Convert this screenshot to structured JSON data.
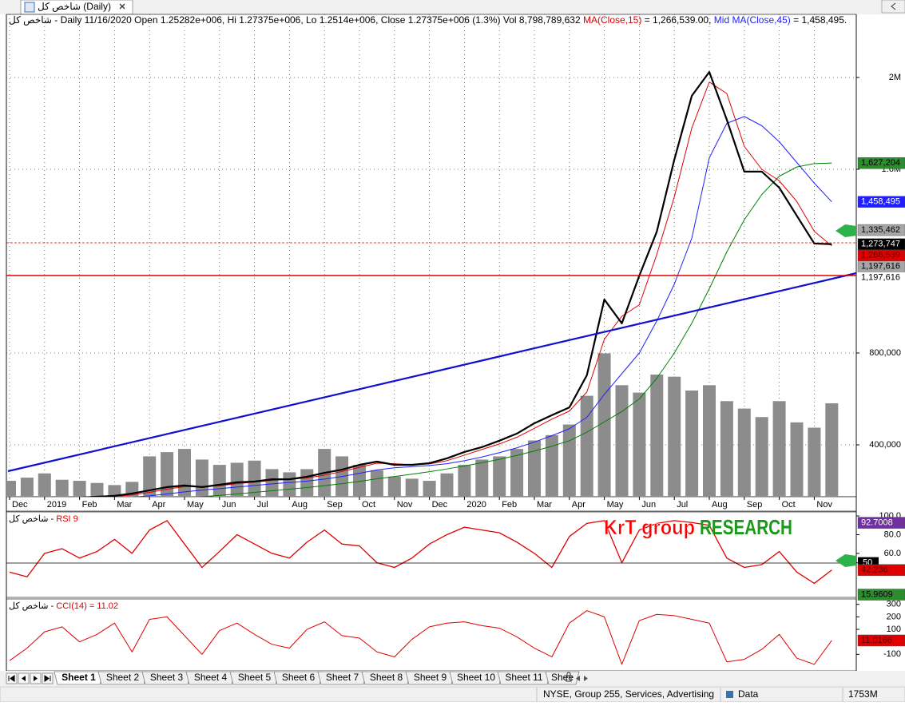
{
  "window": {
    "tab_title": "شاخص کل (Daily)"
  },
  "header": {
    "source": "شاخص کل -",
    "info": "Daily 11/16/2020 Open 1.25282e+006, Hi 1.27375e+006, Lo 1.2514e+006, Close 1.27375e+006 (1.3%) Vol 8,798,789,632",
    "ma15_value": "= 1,266,539.00,",
    "ma45_value": "= 1,458,495."
  },
  "chart_data": [
    {
      "type": "line",
      "categories": [
        "Dec",
        null,
        "2019",
        null,
        "Feb",
        null,
        "Mar",
        null,
        "Apr",
        null,
        "May",
        null,
        "Jun",
        null,
        "Jul",
        null,
        "Aug",
        null,
        "Sep",
        null,
        "Oct",
        null,
        "Nov",
        null,
        "Dec",
        null,
        "2020",
        null,
        "Feb",
        null,
        "Mar",
        null,
        "Apr",
        null,
        "May",
        null,
        "Jun",
        null,
        "Jul",
        null,
        "Aug",
        null,
        "Sep",
        null,
        "Oct",
        null,
        "Nov",
        null
      ],
      "ylim": [
        173900,
        2274800
      ],
      "yticks": [
        {
          "value": 400000,
          "label": "400,000"
        },
        {
          "value": 800000,
          "label": "800,000"
        },
        {
          "value": 1600000,
          "label": "1.6M"
        },
        {
          "value": 2000000,
          "label": "2M"
        }
      ],
      "y2lim": [
        0,
        45400000000
      ],
      "grid": true,
      "series": [
        {
          "type": "bar",
          "axis": "y2",
          "color": "#8c8c8c",
          "values": [
            1500000000,
            1800000000,
            2200000000,
            1600000000,
            1500000000,
            1300000000,
            1100000000,
            1400000000,
            3800000000,
            4200000000,
            4500000000,
            3500000000,
            3000000000,
            3200000000,
            3400000000,
            2600000000,
            2300000000,
            2600000000,
            4500000000,
            3800000000,
            3000000000,
            2500000000,
            1900000000,
            1700000000,
            1500000000,
            2200000000,
            3000000000,
            3500000000,
            3800000000,
            4500000000,
            5300000000,
            5800000000,
            6800000000,
            9500000000,
            13500000000,
            10500000000,
            9800000000,
            11500000000,
            11300000000,
            10000000000,
            10500000000,
            9000000000,
            8300000000,
            7500000000,
            9000000000,
            7000000000,
            6500000000,
            8798789632
          ]
        },
        {
          "type": "line",
          "color": "#008000",
          "width": 1,
          "values": [
            140000,
            142000,
            144000,
            146000,
            148000,
            150000,
            153000,
            156000,
            160000,
            164000,
            169000,
            174000,
            180000,
            186000,
            193000,
            200000,
            207000,
            214000,
            222000,
            231000,
            241000,
            252000,
            262000,
            272000,
            283000,
            295000,
            308000,
            322000,
            337000,
            354000,
            373000,
            394000,
            418000,
            455000,
            500000,
            545000,
            600000,
            690000,
            800000,
            930000,
            1080000,
            1240000,
            1380000,
            1490000,
            1570000,
            1610000,
            1625000,
            1627204
          ]
        },
        {
          "type": "line",
          "name": "Mid MA(Close,45)",
          "color": "#1f1fff",
          "width": 1,
          "values": [
            155000,
            157000,
            159000,
            161000,
            163000,
            165000,
            168000,
            172000,
            178000,
            186000,
            195000,
            203000,
            209000,
            216000,
            223000,
            230000,
            236000,
            242000,
            251000,
            262000,
            276000,
            291000,
            300000,
            305000,
            310000,
            318000,
            331000,
            347000,
            366000,
            387000,
            412000,
            440000,
            470000,
            520000,
            620000,
            710000,
            800000,
            940000,
            1100000,
            1300000,
            1650000,
            1800000,
            1830000,
            1790000,
            1720000,
            1630000,
            1540000,
            1458495
          ]
        },
        {
          "type": "line",
          "name": "MA(Close,15)",
          "color": "#e00000",
          "width": 1,
          "values": [
            160000,
            162000,
            163000,
            164000,
            167000,
            171000,
            175000,
            182000,
            193000,
            207000,
            218000,
            219000,
            222000,
            231000,
            238000,
            245000,
            250000,
            256000,
            268000,
            284000,
            302000,
            320000,
            318000,
            313000,
            317000,
            331000,
            355000,
            380000,
            404000,
            433000,
            472000,
            512000,
            547000,
            630000,
            860000,
            960000,
            1010000,
            1230000,
            1480000,
            1780000,
            1980000,
            1930000,
            1700000,
            1600000,
            1550000,
            1460000,
            1330000,
            1266539
          ]
        },
        {
          "type": "line",
          "color": "#000000",
          "width": 2.2,
          "values": [
            163000,
            163000,
            163000,
            166000,
            170000,
            174000,
            178000,
            188000,
            202000,
            216000,
            223000,
            216000,
            226000,
            237000,
            240000,
            250000,
            250000,
            261000,
            278000,
            292000,
            313000,
            327000,
            313000,
            313000,
            320000,
            341000,
            369000,
            390000,
            418000,
            449000,
            494000,
            529000,
            563000,
            703000,
            1033000,
            929000,
            1137000,
            1329000,
            1642000,
            1920000,
            2024000,
            1816000,
            1590000,
            1590000,
            1520000,
            1398000,
            1277000,
            1273747
          ]
        }
      ],
      "markers": [
        {
          "value": 1627204,
          "label": "1,627,204",
          "color": "#2e8b2e",
          "text_color": "#000000"
        },
        {
          "value": 1458495,
          "label": "1,458,495",
          "color": "#1f1fff",
          "text_color": "#ffffff"
        },
        {
          "value": 1335462,
          "label": "1,335,462",
          "color": "#a6a6a6",
          "text_color": "#000000"
        },
        {
          "value": 1273747,
          "label": "1,273,747",
          "color": "#000000",
          "text_color": "#ffffff"
        },
        {
          "value": 1266539,
          "label": "1,266,539",
          "color": "#e00000",
          "text_color": "#5a0000"
        },
        {
          "value": 1197616,
          "label": "1,197,616",
          "color": "#a6a6a6",
          "text_color": "#000000"
        },
        {
          "value": 1197616,
          "label": "1,197,616",
          "color": "#ffffff",
          "text_color": "#000000"
        }
      ]
    },
    {
      "type": "line",
      "source": "شاخص کل -",
      "title": "RSI 9",
      "ylim": [
        13,
        104.3
      ],
      "yticks": [
        {
          "value": 100,
          "label": "100.0"
        },
        {
          "value": 80,
          "label": "80.0"
        },
        {
          "value": 60,
          "label": "60.0"
        },
        50
      ],
      "series": [
        {
          "type": "line",
          "color": "#e00000",
          "width": 1.3,
          "values": [
            40,
            35,
            60,
            65,
            55,
            62,
            75,
            60,
            85,
            95,
            70,
            45,
            62,
            80,
            70,
            60,
            55,
            72,
            85,
            70,
            68,
            50,
            45,
            55,
            70,
            80,
            88,
            85,
            82,
            72,
            60,
            45,
            78,
            92,
            95,
            50,
            85,
            92,
            95,
            93,
            90,
            55,
            45,
            48,
            62,
            40,
            28,
            42.236
          ]
        }
      ],
      "markers": [
        {
          "value": 92.7008,
          "label": "92.7008",
          "color": "#7030a0",
          "text_color": "#ffffff"
        },
        {
          "value": 42.236,
          "label": "42.236",
          "color": "#e00000",
          "text_color": "#5a0000"
        },
        {
          "value": 15.9609,
          "label": "15.9609",
          "color": "#2e8b2e",
          "text_color": "#000000"
        }
      ]
    },
    {
      "type": "line",
      "source": "شاخص کل -",
      "title": "CCI(14) = 11.02",
      "ylim": [
        -232,
        343
      ],
      "yticks": [
        300,
        200,
        100,
        -100
      ],
      "series": [
        {
          "type": "line",
          "color": "#e00000",
          "width": 1,
          "values": [
            -150,
            -50,
            80,
            120,
            0,
            60,
            150,
            -80,
            180,
            200,
            50,
            -100,
            90,
            150,
            60,
            -20,
            -50,
            100,
            160,
            50,
            30,
            -80,
            -120,
            20,
            120,
            150,
            160,
            130,
            110,
            40,
            -50,
            -120,
            150,
            250,
            200,
            -180,
            170,
            220,
            210,
            180,
            150,
            -160,
            -140,
            -60,
            60,
            -130,
            -180,
            11.0166
          ]
        }
      ],
      "markers": [
        {
          "value": 11.0166,
          "label": "11.0166",
          "color": "#e00000",
          "text_color": "#5a0000"
        }
      ]
    }
  ],
  "watermark": [
    "KrT group",
    "RESEARCH"
  ],
  "sheets": [
    "Sheet 1",
    "Sheet 2",
    "Sheet 3",
    "Sheet 4",
    "Sheet 5",
    "Sheet 6",
    "Sheet 7",
    "Sheet 8",
    "Sheet 9",
    "Sheet 10",
    "Sheet 11",
    "Shee"
  ],
  "status": {
    "group": "NYSE, Group 255, Services, Advertising",
    "mode": "Data",
    "memory": "1753M"
  }
}
